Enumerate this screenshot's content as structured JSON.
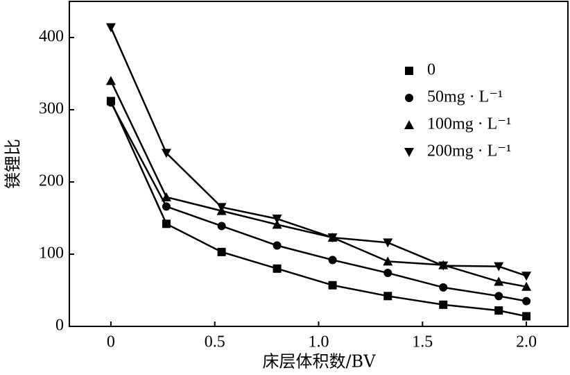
{
  "chart_data": {
    "type": "line",
    "xlabel": "床层体积数/BV",
    "ylabel": "镁锂比",
    "x": [
      0,
      0.267,
      0.533,
      0.8,
      1.067,
      1.333,
      1.6,
      1.867,
      2.0
    ],
    "series": [
      {
        "name": "0",
        "color": "#000000",
        "marker": "square",
        "values": [
          312,
          142,
          103,
          80,
          57,
          42,
          30,
          22,
          14
        ]
      },
      {
        "name": "50mg · L⁻¹",
        "color": "#000000",
        "marker": "circle",
        "values": [
          310,
          166,
          139,
          112,
          92,
          74,
          54,
          42,
          35
        ]
      },
      {
        "name": "100mg · L⁻¹",
        "color": "#000000",
        "marker": "triangle-up",
        "values": [
          340,
          179,
          160,
          141,
          123,
          90,
          85,
          62,
          55
        ]
      },
      {
        "name": "200mg · L⁻¹",
        "color": "#000000",
        "marker": "triangle-down",
        "values": [
          414,
          240,
          165,
          149,
          123,
          116,
          84,
          83,
          70
        ]
      }
    ],
    "xlim": [
      -0.2,
      2.2
    ],
    "ylim": [
      0,
      450
    ],
    "xticks": [
      0,
      0.5,
      {
        "value": 1,
        "label": "1.0"
      },
      1.5,
      {
        "value": 2,
        "label": "2.0"
      }
    ],
    "yticks": [
      0,
      100,
      200,
      300,
      400
    ],
    "legend": "upper right",
    "grid": false
  }
}
